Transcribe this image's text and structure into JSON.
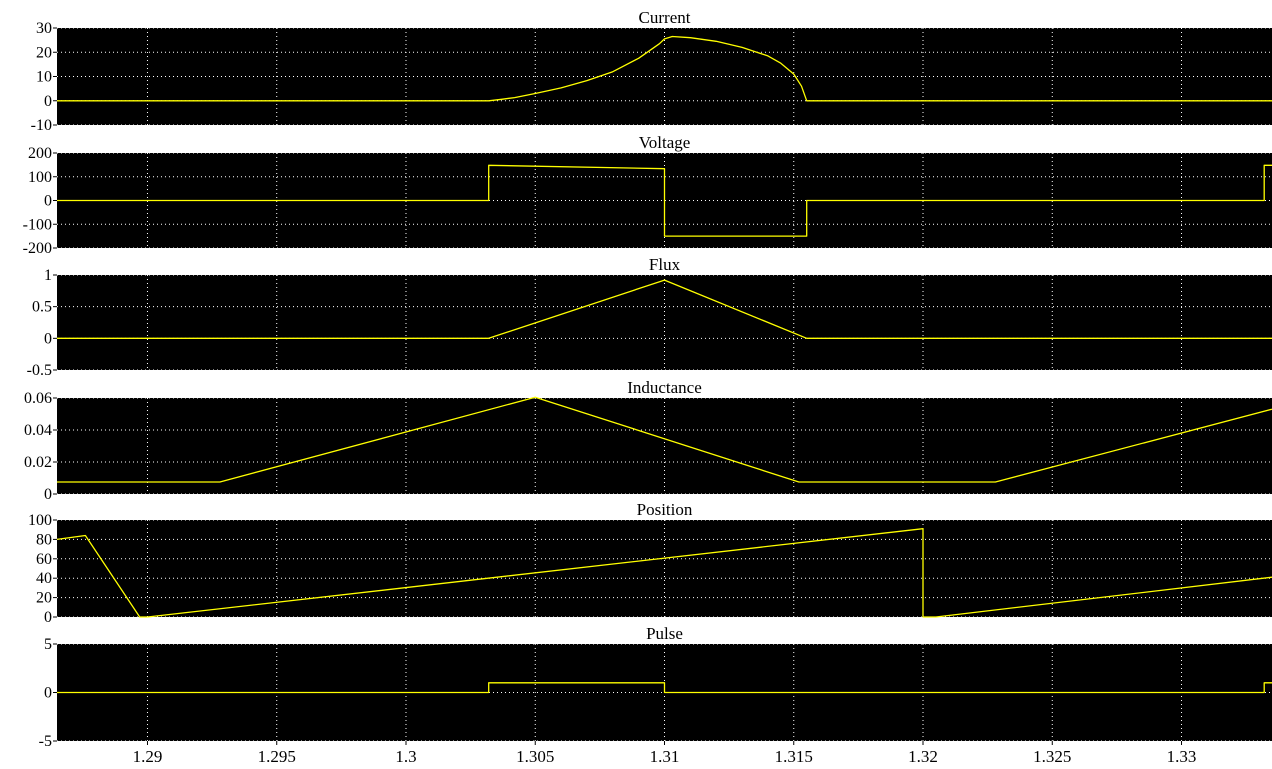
{
  "chart_data": {
    "type": "line",
    "x_range": [
      1.2865,
      1.3335
    ],
    "x_ticks": [
      1.29,
      1.295,
      1.3,
      1.305,
      1.31,
      1.315,
      1.32,
      1.325,
      1.33
    ],
    "x_tick_labels": [
      "1.29",
      "1.295",
      "1.3",
      "1.305",
      "1.31",
      "1.315",
      "1.32",
      "1.325",
      "1.33"
    ],
    "background_color": "#000000",
    "trace_color": "#ffff00",
    "grid": true,
    "panels": [
      {
        "title": "Current",
        "ylim": [
          -10,
          30
        ],
        "y_ticks": [
          -10,
          0,
          10,
          20,
          30
        ],
        "y_tick_labels": [
          "-10",
          "0",
          "10",
          "20",
          "30"
        ],
        "x": [
          1.2865,
          1.3032,
          1.3037,
          1.3042,
          1.305,
          1.306,
          1.307,
          1.308,
          1.309,
          1.3098,
          1.31,
          1.3103,
          1.311,
          1.312,
          1.313,
          1.314,
          1.3145,
          1.315,
          1.3153,
          1.3155,
          1.3335
        ],
        "y": [
          0,
          0,
          0.6,
          1.3,
          3,
          5.3,
          8.3,
          12,
          17.5,
          23.5,
          25.5,
          26.5,
          26,
          24.5,
          22,
          18.5,
          15.5,
          11,
          6,
          0,
          0
        ]
      },
      {
        "title": "Voltage",
        "ylim": [
          -200,
          200
        ],
        "y_ticks": [
          -200,
          -100,
          0,
          100,
          200
        ],
        "y_tick_labels": [
          "-200",
          "-100",
          "0",
          "100",
          "200"
        ],
        "x": [
          1.2865,
          1.3032,
          1.3032,
          1.31,
          1.31,
          1.3155,
          1.3155,
          1.3332,
          1.3332,
          1.3335
        ],
        "y": [
          0,
          0,
          148,
          134,
          -150,
          -150,
          0,
          0,
          148,
          148
        ]
      },
      {
        "title": "Flux",
        "ylim": [
          -0.5,
          1
        ],
        "y_ticks": [
          -0.5,
          0,
          0.5,
          1
        ],
        "y_tick_labels": [
          "-0.5",
          "0",
          "0.5",
          "1"
        ],
        "x": [
          1.2865,
          1.3032,
          1.31,
          1.3155,
          1.3335
        ],
        "y": [
          0,
          0,
          0.92,
          0,
          0
        ]
      },
      {
        "title": "Inductance",
        "ylim": [
          0,
          0.06
        ],
        "y_ticks": [
          0,
          0.02,
          0.04,
          0.06
        ],
        "y_tick_labels": [
          "0",
          "0.02",
          "0.04",
          "0.06"
        ],
        "x": [
          1.2865,
          1.2928,
          1.305,
          1.3152,
          1.3228,
          1.3335
        ],
        "y": [
          0.0075,
          0.0075,
          0.0605,
          0.0075,
          0.0075,
          0.053
        ]
      },
      {
        "title": "Position",
        "ylim": [
          0,
          100
        ],
        "y_ticks": [
          0,
          20,
          40,
          60,
          80,
          100
        ],
        "y_tick_labels": [
          "0",
          "20",
          "40",
          "60",
          "80",
          "100"
        ],
        "x": [
          1.2865,
          1.2876,
          1.2897,
          1.29,
          1.32,
          1.32,
          1.3205,
          1.3335
        ],
        "y": [
          80,
          84,
          0,
          0,
          91,
          0,
          0,
          41
        ]
      },
      {
        "title": "Pulse",
        "ylim": [
          -5,
          5
        ],
        "y_ticks": [
          -5,
          0,
          5
        ],
        "y_tick_labels": [
          "-5",
          "0",
          "5"
        ],
        "x": [
          1.2865,
          1.3032,
          1.3032,
          1.31,
          1.31,
          1.3332,
          1.3332,
          1.3335
        ],
        "y": [
          0,
          0,
          1,
          1,
          0,
          0,
          1,
          1
        ]
      }
    ]
  }
}
